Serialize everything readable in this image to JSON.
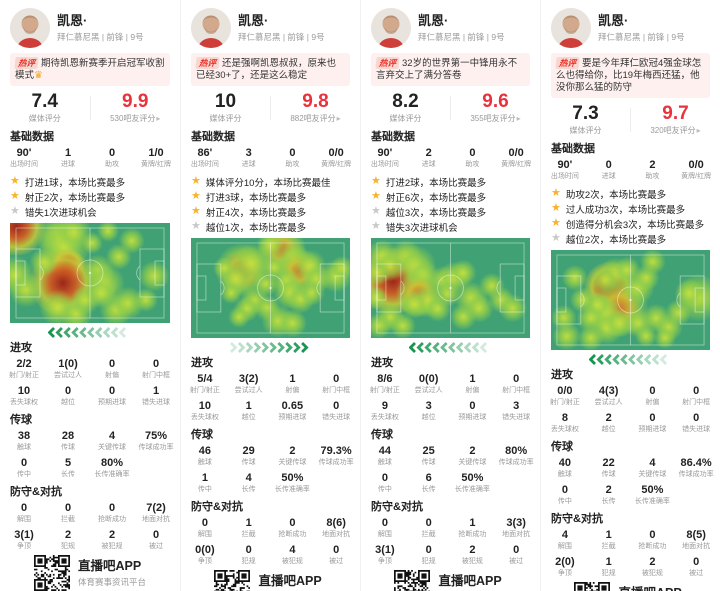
{
  "shared": {
    "hot_label": "热评",
    "media_score_label": "媒体评分",
    "sections": {
      "basic": "基础数据",
      "attack": "进攻",
      "passing": "传球",
      "defense": "防守&对抗"
    },
    "labels": {
      "basic": [
        "出场时间",
        "进球",
        "助攻",
        "黄牌/红牌"
      ],
      "attack": [
        [
          "射门/射正",
          "尝试过人",
          "射偏",
          "射门中框"
        ],
        [
          "丢失球权",
          "越位",
          "预期进球",
          "错失进球"
        ]
      ],
      "passing": [
        [
          "触球",
          "传球",
          "关键传球",
          "传球成功率"
        ],
        [
          "传中",
          "长传",
          "长传准确率"
        ]
      ],
      "defense": [
        [
          "解围",
          "拦截",
          "抢断成功",
          "地面对抗"
        ],
        [
          "争顶",
          "犯规",
          "被犯规",
          "被过"
        ]
      ]
    },
    "icons": {
      "arrow": "▸",
      "star": "★",
      "crown": "♛"
    },
    "colors": {
      "accent_red": "#e8323c",
      "star_gold": "#f7b32b",
      "star_gray": "#c9c9c9",
      "field_green": "#40a274",
      "chevron_green": "#17954f"
    }
  },
  "footer": {
    "app_name": "直播吧APP",
    "tagline": "体育赛事资讯平台"
  },
  "players": [
    {
      "name": "凯恩·",
      "team_line": "拜仁慕尼黑 | 前锋 | 9号",
      "hot_comment": "期待凯恩新赛季开启冠军收割模式",
      "hot_emoji": true,
      "media_score": "7.4",
      "fan_score": "9.9",
      "fan_score_label": "530吧友评分",
      "basic": [
        "90'",
        "1",
        "0",
        "1/0"
      ],
      "stars": [
        {
          "gold": true,
          "text": "打进1球，本场比赛最多"
        },
        {
          "gold": true,
          "text": "射正2次，本场比赛最多"
        },
        {
          "gold": false,
          "text": "错失1次进球机会"
        }
      ],
      "attack": [
        [
          "2/2",
          "1(0)",
          "0",
          "0"
        ],
        [
          "10",
          "0",
          "0",
          "1"
        ]
      ],
      "passing": [
        [
          "38",
          "28",
          "4",
          "75%"
        ],
        [
          "0",
          "5",
          "80%"
        ]
      ],
      "defense": [
        [
          "0",
          "0",
          "0",
          "7(2)"
        ],
        [
          "3(1)",
          "2",
          "2",
          "0"
        ]
      ],
      "chevron_dir": "left",
      "blobs": [
        [
          4,
          4,
          26,
          "r"
        ],
        [
          30,
          13,
          20,
          "y"
        ],
        [
          34,
          24,
          24,
          "y"
        ],
        [
          40,
          9,
          16,
          "y"
        ],
        [
          36,
          42,
          15,
          "r"
        ],
        [
          33,
          60,
          30,
          "r"
        ],
        [
          3,
          52,
          18,
          "y"
        ],
        [
          10,
          67,
          16,
          "y"
        ],
        [
          21,
          39,
          13,
          "y"
        ],
        [
          30,
          85,
          17,
          "y"
        ],
        [
          41,
          91,
          15,
          "y"
        ],
        [
          47,
          77,
          13,
          "y"
        ],
        [
          55,
          48,
          15,
          "y"
        ],
        [
          59,
          61,
          19,
          "y"
        ],
        [
          57,
          70,
          14,
          "y"
        ],
        [
          68,
          34,
          12,
          "y"
        ],
        [
          76,
          18,
          12,
          "y"
        ],
        [
          90,
          53,
          14,
          "y"
        ],
        [
          66,
          87,
          15,
          "y"
        ],
        [
          74,
          80,
          15,
          "y"
        ],
        [
          85,
          77,
          11,
          "y"
        ],
        [
          51,
          20,
          10,
          "y"
        ],
        [
          61,
          8,
          10,
          "y"
        ]
      ]
    },
    {
      "name": "凯恩·",
      "team_line": "拜仁慕尼黑 | 前锋 | 9号",
      "hot_comment": "还是强啊凯恩叔叔，原来也已经30+了，还是这么稳定",
      "hot_emoji": false,
      "media_score": "10",
      "fan_score": "9.8",
      "fan_score_label": "882吧友评分",
      "basic": [
        "86'",
        "3",
        "0",
        "0/0"
      ],
      "stars": [
        {
          "gold": true,
          "text": "媒体评分10分，本场比赛最佳"
        },
        {
          "gold": true,
          "text": "打进3球，本场比赛最多"
        },
        {
          "gold": true,
          "text": "射正4次，本场比赛最多"
        },
        {
          "gold": false,
          "text": "越位1次，本场比赛最多"
        }
      ],
      "attack": [
        [
          "5/4",
          "3(2)",
          "1",
          "0"
        ],
        [
          "10",
          "1",
          "0.65",
          "0"
        ]
      ],
      "passing": [
        [
          "46",
          "29",
          "2",
          "79.3%"
        ],
        [
          "1",
          "4",
          "50%"
        ]
      ],
      "defense": [
        [
          "0",
          "1",
          "0",
          "8(6)"
        ],
        [
          "0(0)",
          "0",
          "4",
          "0"
        ]
      ],
      "chevron_dir": "right",
      "blobs": [
        [
          32,
          32,
          24,
          "o"
        ],
        [
          38,
          25,
          18,
          "y"
        ],
        [
          28,
          41,
          15,
          "y"
        ],
        [
          57,
          12,
          22,
          "o"
        ],
        [
          50,
          7,
          13,
          "y"
        ],
        [
          64,
          20,
          15,
          "y"
        ],
        [
          68,
          33,
          20,
          "o"
        ],
        [
          75,
          28,
          15,
          "y"
        ],
        [
          79,
          41,
          13,
          "y"
        ],
        [
          60,
          43,
          13,
          "y"
        ],
        [
          52,
          30,
          12,
          "y"
        ],
        [
          47,
          46,
          12,
          "y"
        ],
        [
          62,
          55,
          15,
          "y"
        ],
        [
          69,
          61,
          13,
          "y"
        ],
        [
          76,
          55,
          12,
          "y"
        ],
        [
          40,
          62,
          13,
          "y"
        ],
        [
          35,
          71,
          12,
          "y"
        ],
        [
          48,
          70,
          12,
          "y"
        ],
        [
          55,
          83,
          15,
          "y"
        ],
        [
          64,
          85,
          13,
          "y"
        ],
        [
          91,
          38,
          15,
          "y"
        ],
        [
          95,
          30,
          11,
          "y"
        ],
        [
          25,
          55,
          10,
          "y"
        ],
        [
          30,
          79,
          10,
          "y"
        ],
        [
          21,
          30,
          10,
          "y"
        ]
      ]
    },
    {
      "name": "凯恩·",
      "team_line": "拜仁慕尼黑 | 前锋 | 9号",
      "hot_comment": "32岁的世界第一中锋用永不言弃交上了满分答卷",
      "hot_emoji": false,
      "media_score": "8.2",
      "fan_score": "9.6",
      "fan_score_label": "355吧友评分",
      "basic": [
        "90'",
        "2",
        "0",
        "0/0"
      ],
      "stars": [
        {
          "gold": true,
          "text": "打进2球，本场比赛最多"
        },
        {
          "gold": true,
          "text": "射正6次，本场比赛最多"
        },
        {
          "gold": false,
          "text": "越位3次，本场比赛最多"
        },
        {
          "gold": false,
          "text": "错失3次进球机会"
        }
      ],
      "attack": [
        [
          "8/6",
          "0(0)",
          "1",
          "0"
        ],
        [
          "9",
          "3",
          "0",
          "3"
        ]
      ],
      "passing": [
        [
          "44",
          "25",
          "2",
          "80%"
        ],
        [
          "0",
          "6",
          "50%"
        ]
      ],
      "defense": [
        [
          "0",
          "0",
          "1",
          "3(3)"
        ],
        [
          "3(1)",
          "0",
          "2",
          "0"
        ]
      ],
      "chevron_dir": "left",
      "blobs": [
        [
          14,
          43,
          30,
          "r"
        ],
        [
          7,
          18,
          15,
          "y"
        ],
        [
          12,
          28,
          14,
          "y"
        ],
        [
          4,
          35,
          12,
          "y"
        ],
        [
          22,
          18,
          15,
          "y"
        ],
        [
          28,
          28,
          19,
          "y"
        ],
        [
          33,
          38,
          15,
          "y"
        ],
        [
          30,
          56,
          21,
          "o"
        ],
        [
          35,
          63,
          15,
          "y"
        ],
        [
          27,
          66,
          13,
          "y"
        ],
        [
          45,
          42,
          13,
          "y"
        ],
        [
          52,
          40,
          15,
          "y"
        ],
        [
          58,
          35,
          12,
          "y"
        ],
        [
          48,
          56,
          12,
          "y"
        ],
        [
          42,
          71,
          12,
          "y"
        ],
        [
          63,
          60,
          15,
          "y"
        ],
        [
          68,
          70,
          13,
          "y"
        ],
        [
          58,
          79,
          12,
          "y"
        ],
        [
          76,
          48,
          12,
          "y"
        ],
        [
          82,
          62,
          12,
          "y"
        ],
        [
          89,
          70,
          13,
          "y"
        ],
        [
          12,
          79,
          13,
          "y"
        ],
        [
          5,
          88,
          12,
          "y"
        ],
        [
          20,
          88,
          12,
          "y"
        ],
        [
          3,
          60,
          11,
          "y"
        ]
      ]
    },
    {
      "name": "凯恩·",
      "team_line": "拜仁慕尼黑 | 前锋 | 9号",
      "hot_comment": "要是今年拜仁欧冠4强金球怎么也得给你，比19年梅西还猛，他没你那么猛的防守",
      "hot_emoji": false,
      "media_score": "7.3",
      "fan_score": "9.7",
      "fan_score_label": "320吧友评分",
      "basic": [
        "90'",
        "0",
        "2",
        "0/0"
      ],
      "stars": [
        {
          "gold": true,
          "text": "助攻2次，本场比赛最多"
        },
        {
          "gold": true,
          "text": "过人成功3次，本场比赛最多"
        },
        {
          "gold": true,
          "text": "创造得分机会3次，本场比赛最多"
        },
        {
          "gold": false,
          "text": "越位2次，本场比赛最多"
        }
      ],
      "attack": [
        [
          "0/0",
          "4(3)",
          "0",
          "0"
        ],
        [
          "8",
          "2",
          "0",
          "0"
        ]
      ],
      "passing": [
        [
          "40",
          "22",
          "4",
          "86.4%"
        ],
        [
          "0",
          "2",
          "50%"
        ]
      ],
      "defense": [
        [
          "4",
          "1",
          "0",
          "8(5)"
        ],
        [
          "2(0)",
          "1",
          "2",
          "0"
        ]
      ],
      "chevron_dir": "left",
      "blobs": [
        [
          37,
          37,
          23,
          "r"
        ],
        [
          43,
          58,
          26,
          "o"
        ],
        [
          34,
          63,
          17,
          "y"
        ],
        [
          29,
          55,
          13,
          "y"
        ],
        [
          40,
          24,
          15,
          "y"
        ],
        [
          34,
          30,
          13,
          "y"
        ],
        [
          48,
          20,
          12,
          "y"
        ],
        [
          25,
          68,
          13,
          "y"
        ],
        [
          35,
          78,
          15,
          "y"
        ],
        [
          43,
          73,
          13,
          "y"
        ],
        [
          15,
          28,
          12,
          "y"
        ],
        [
          20,
          50,
          12,
          "y"
        ],
        [
          8,
          68,
          12,
          "y"
        ],
        [
          10,
          86,
          13,
          "y"
        ],
        [
          25,
          88,
          12,
          "y"
        ],
        [
          55,
          38,
          15,
          "y"
        ],
        [
          60,
          28,
          12,
          "y"
        ],
        [
          64,
          12,
          12,
          "y"
        ],
        [
          55,
          73,
          13,
          "y"
        ],
        [
          66,
          68,
          13,
          "y"
        ],
        [
          74,
          77,
          13,
          "y"
        ],
        [
          80,
          63,
          12,
          "y"
        ],
        [
          93,
          48,
          22,
          "y"
        ],
        [
          87,
          43,
          13,
          "y"
        ],
        [
          72,
          88,
          10,
          "y"
        ],
        [
          60,
          86,
          10,
          "y"
        ]
      ]
    }
  ]
}
